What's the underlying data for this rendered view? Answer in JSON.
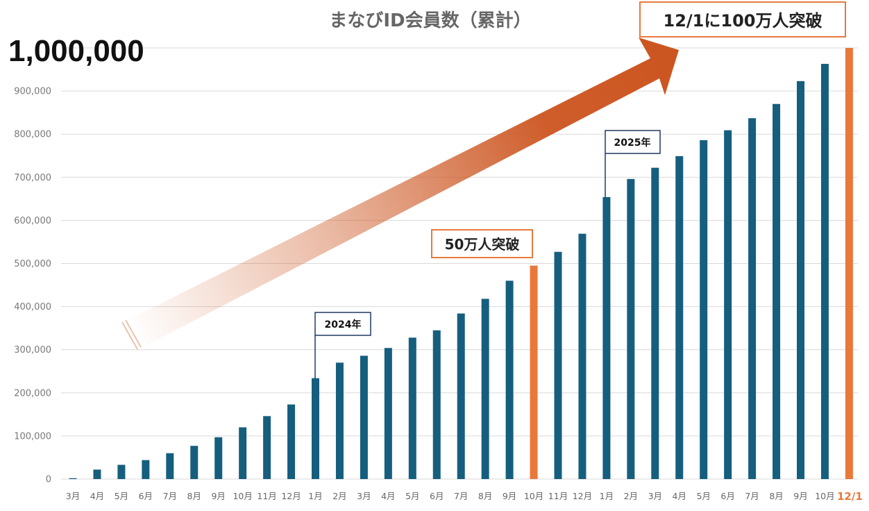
{
  "chart_data": {
    "type": "bar",
    "title": "まなびID会員数（累計）",
    "headline_value": "1,000,000",
    "ylim": [
      0,
      1000000
    ],
    "yticks": [
      "0",
      "100,000",
      "200,000",
      "300,000",
      "400,000",
      "500,000",
      "600,000",
      "700,000",
      "800,000",
      "900,000"
    ],
    "ytick_values": [
      0,
      100000,
      200000,
      300000,
      400000,
      500000,
      600000,
      700000,
      800000,
      900000
    ],
    "grid": true,
    "categories": [
      "3月",
      "4月",
      "5月",
      "6月",
      "7月",
      "8月",
      "9月",
      "10月",
      "11月",
      "12月",
      "1月",
      "2月",
      "3月",
      "4月",
      "5月",
      "6月",
      "7月",
      "8月",
      "9月",
      "10月",
      "11月",
      "12月",
      "1月",
      "2月",
      "3月",
      "4月",
      "5月",
      "6月",
      "7月",
      "8月",
      "9月",
      "10月",
      "12/1"
    ],
    "values": [
      2000,
      22000,
      33000,
      44000,
      60000,
      77000,
      97000,
      120000,
      146000,
      173000,
      234000,
      270000,
      286000,
      304000,
      328000,
      345000,
      384000,
      418000,
      460000,
      495000,
      527000,
      569000,
      654000,
      696000,
      722000,
      749000,
      786000,
      809000,
      837000,
      870000,
      923000,
      963000,
      1000000
    ],
    "highlight_indices": [
      19,
      32
    ],
    "annotations": {
      "milestone_500k": "50万人突破",
      "milestone_1m": "12/1に100万人突破",
      "year_2024": "2024年",
      "year_2025": "2025年"
    },
    "colors": {
      "bar": "#165E7E",
      "highlight": "#E8793A",
      "arrow": "#CC5520",
      "grid": "#D9D9D9",
      "callout_border": "#E8793A",
      "year_border": "#1F3864"
    }
  }
}
